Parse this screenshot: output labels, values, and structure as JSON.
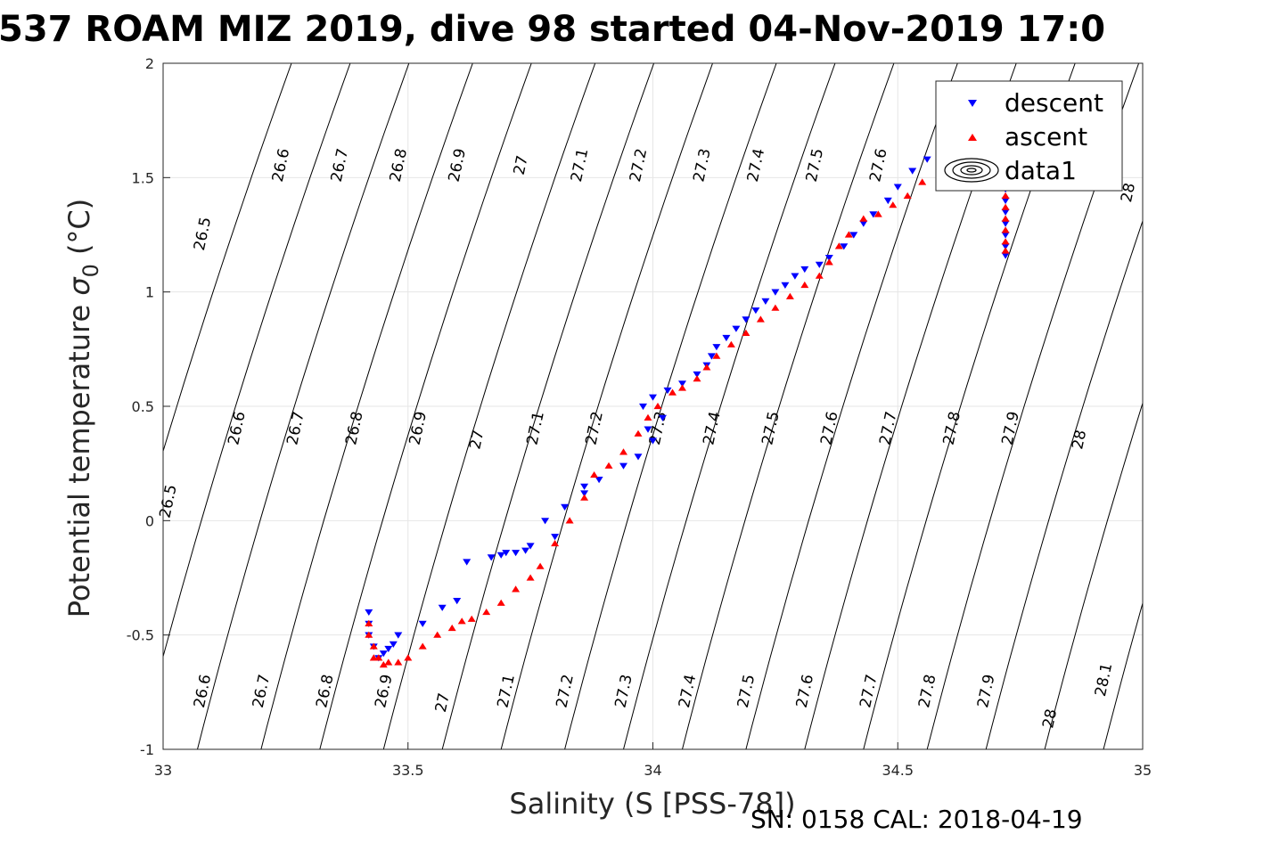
{
  "chart_data": {
    "type": "scatter",
    "title": "537 ROAM MIZ 2019, dive 98 started 04-Nov-2019 17:0",
    "xlabel": "Salinity (S [PSS-78])",
    "ylabel": "Potential temperature",
    "ylabel_symbol": "σ",
    "ylabel_subscript": "0",
    "ylabel_unit": "(°C)",
    "footer": "SN: 0158  CAL: 2018-04-19",
    "xlim": [
      33,
      35
    ],
    "ylim": [
      -1,
      2
    ],
    "x_ticks": [
      "33",
      "33.5",
      "34",
      "34.5",
      "35"
    ],
    "y_ticks": [
      "-1",
      "-0.5",
      "0",
      "0.5",
      "1",
      "1.5",
      "2"
    ],
    "grid": true,
    "legend": {
      "placement": "top-right",
      "entries": [
        "descent",
        "ascent",
        "data1"
      ]
    },
    "series": [
      {
        "name": "descent",
        "color": "#0000ff",
        "marker": "triangle-down",
        "points": [
          [
            34.72,
            1.16
          ],
          [
            34.72,
            1.2
          ],
          [
            34.72,
            1.25
          ],
          [
            34.72,
            1.3
          ],
          [
            34.72,
            1.35
          ],
          [
            34.72,
            1.4
          ],
          [
            34.72,
            1.45
          ],
          [
            34.72,
            1.5
          ],
          [
            34.7,
            1.55
          ],
          [
            34.67,
            1.58
          ],
          [
            34.63,
            1.6
          ],
          [
            34.6,
            1.63
          ],
          [
            34.56,
            1.58
          ],
          [
            34.53,
            1.53
          ],
          [
            34.5,
            1.46
          ],
          [
            34.48,
            1.4
          ],
          [
            34.45,
            1.34
          ],
          [
            34.43,
            1.3
          ],
          [
            34.41,
            1.25
          ],
          [
            34.39,
            1.2
          ],
          [
            34.36,
            1.15
          ],
          [
            34.34,
            1.12
          ],
          [
            34.31,
            1.1
          ],
          [
            34.29,
            1.07
          ],
          [
            34.27,
            1.03
          ],
          [
            34.25,
            1.0
          ],
          [
            34.23,
            0.96
          ],
          [
            34.21,
            0.92
          ],
          [
            34.19,
            0.88
          ],
          [
            34.17,
            0.84
          ],
          [
            34.15,
            0.8
          ],
          [
            34.13,
            0.76
          ],
          [
            34.12,
            0.72
          ],
          [
            34.11,
            0.68
          ],
          [
            34.09,
            0.64
          ],
          [
            34.06,
            0.6
          ],
          [
            34.03,
            0.57
          ],
          [
            34.0,
            0.54
          ],
          [
            33.98,
            0.5
          ],
          [
            34.02,
            0.45
          ],
          [
            33.99,
            0.4
          ],
          [
            34.0,
            0.35
          ],
          [
            33.97,
            0.28
          ],
          [
            33.94,
            0.24
          ],
          [
            33.89,
            0.18
          ],
          [
            33.86,
            0.15
          ],
          [
            33.86,
            0.12
          ],
          [
            33.82,
            0.06
          ],
          [
            33.78,
            0.0
          ],
          [
            33.8,
            -0.07
          ],
          [
            33.75,
            -0.11
          ],
          [
            33.74,
            -0.13
          ],
          [
            33.72,
            -0.14
          ],
          [
            33.7,
            -0.14
          ],
          [
            33.69,
            -0.15
          ],
          [
            33.67,
            -0.16
          ],
          [
            33.62,
            -0.18
          ],
          [
            33.6,
            -0.35
          ],
          [
            33.57,
            -0.38
          ],
          [
            33.53,
            -0.45
          ],
          [
            33.48,
            -0.5
          ],
          [
            33.47,
            -0.54
          ],
          [
            33.46,
            -0.56
          ],
          [
            33.45,
            -0.58
          ],
          [
            33.44,
            -0.6
          ],
          [
            33.43,
            -0.55
          ],
          [
            33.42,
            -0.5
          ],
          [
            33.42,
            -0.45
          ],
          [
            33.42,
            -0.4
          ]
        ]
      },
      {
        "name": "ascent",
        "color": "#ff0000",
        "marker": "triangle-up",
        "points": [
          [
            34.72,
            1.18
          ],
          [
            34.72,
            1.22
          ],
          [
            34.72,
            1.27
          ],
          [
            34.72,
            1.32
          ],
          [
            34.72,
            1.37
          ],
          [
            34.72,
            1.42
          ],
          [
            34.72,
            1.47
          ],
          [
            34.66,
            1.55
          ],
          [
            34.63,
            1.6
          ],
          [
            34.59,
            1.56
          ],
          [
            34.55,
            1.48
          ],
          [
            34.52,
            1.42
          ],
          [
            34.49,
            1.38
          ],
          [
            34.46,
            1.34
          ],
          [
            34.43,
            1.32
          ],
          [
            34.4,
            1.25
          ],
          [
            34.38,
            1.2
          ],
          [
            34.36,
            1.13
          ],
          [
            34.34,
            1.07
          ],
          [
            34.31,
            1.03
          ],
          [
            34.28,
            0.98
          ],
          [
            34.25,
            0.93
          ],
          [
            34.22,
            0.88
          ],
          [
            34.19,
            0.82
          ],
          [
            34.16,
            0.77
          ],
          [
            34.13,
            0.72
          ],
          [
            34.11,
            0.67
          ],
          [
            34.09,
            0.62
          ],
          [
            34.06,
            0.58
          ],
          [
            34.04,
            0.56
          ],
          [
            34.01,
            0.5
          ],
          [
            33.99,
            0.45
          ],
          [
            33.97,
            0.38
          ],
          [
            33.94,
            0.3
          ],
          [
            33.91,
            0.24
          ],
          [
            33.88,
            0.2
          ],
          [
            33.86,
            0.1
          ],
          [
            33.83,
            0.0
          ],
          [
            33.8,
            -0.1
          ],
          [
            33.77,
            -0.2
          ],
          [
            33.75,
            -0.25
          ],
          [
            33.72,
            -0.3
          ],
          [
            33.69,
            -0.36
          ],
          [
            33.66,
            -0.4
          ],
          [
            33.63,
            -0.43
          ],
          [
            33.61,
            -0.44
          ],
          [
            33.59,
            -0.47
          ],
          [
            33.56,
            -0.5
          ],
          [
            33.53,
            -0.55
          ],
          [
            33.5,
            -0.6
          ],
          [
            33.48,
            -0.62
          ],
          [
            33.46,
            -0.62
          ],
          [
            33.44,
            -0.6
          ],
          [
            33.43,
            -0.55
          ],
          [
            33.42,
            -0.5
          ],
          [
            33.42,
            -0.45
          ],
          [
            33.43,
            -0.6
          ],
          [
            33.45,
            -0.63
          ]
        ]
      }
    ],
    "contour_labels": [
      [
        "26.5",
        33.09,
        1.25
      ],
      [
        "26.6",
        33.25,
        1.55
      ],
      [
        "26.7",
        33.37,
        1.55
      ],
      [
        "26.8",
        33.49,
        1.55
      ],
      [
        "26.9",
        33.61,
        1.55
      ],
      [
        "27",
        33.74,
        1.55
      ],
      [
        "27.1",
        33.86,
        1.55
      ],
      [
        "27.2",
        33.98,
        1.55
      ],
      [
        "27.3",
        34.11,
        1.55
      ],
      [
        "27.4",
        34.22,
        1.55
      ],
      [
        "27.5",
        34.34,
        1.55
      ],
      [
        "27.6",
        34.47,
        1.55
      ],
      [
        "28",
        34.98,
        1.43
      ],
      [
        "26.5",
        33.02,
        0.08
      ],
      [
        "26.6",
        33.16,
        0.4
      ],
      [
        "26.7",
        33.28,
        0.4
      ],
      [
        "26.8",
        33.4,
        0.4
      ],
      [
        "26.9",
        33.53,
        0.4
      ],
      [
        "27",
        33.65,
        0.35
      ],
      [
        "27.1",
        33.77,
        0.4
      ],
      [
        "27.2",
        33.89,
        0.4
      ],
      [
        "27.3",
        34.02,
        0.4
      ],
      [
        "27.4",
        34.13,
        0.4
      ],
      [
        "27.5",
        34.25,
        0.4
      ],
      [
        "27.6",
        34.37,
        0.4
      ],
      [
        "27.7",
        34.49,
        0.4
      ],
      [
        "27.8",
        34.62,
        0.4
      ],
      [
        "27.9",
        34.74,
        0.4
      ],
      [
        "28",
        34.88,
        0.35
      ],
      [
        "26.6",
        33.09,
        -0.75
      ],
      [
        "26.7",
        33.21,
        -0.75
      ],
      [
        "26.8",
        33.34,
        -0.75
      ],
      [
        "26.9",
        33.46,
        -0.75
      ],
      [
        "27",
        33.58,
        -0.8
      ],
      [
        "27.1",
        33.71,
        -0.75
      ],
      [
        "27.2",
        33.83,
        -0.75
      ],
      [
        "27.3",
        33.95,
        -0.75
      ],
      [
        "27.4",
        34.08,
        -0.75
      ],
      [
        "27.5",
        34.2,
        -0.75
      ],
      [
        "27.6",
        34.32,
        -0.75
      ],
      [
        "27.7",
        34.45,
        -0.75
      ],
      [
        "27.8",
        34.57,
        -0.75
      ],
      [
        "27.9",
        34.69,
        -0.75
      ],
      [
        "28",
        34.82,
        -0.87
      ],
      [
        "28.1",
        34.93,
        -0.7
      ]
    ]
  }
}
